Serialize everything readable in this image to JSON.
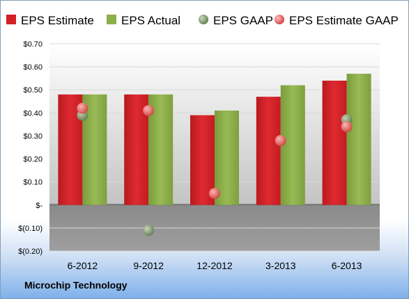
{
  "company": "Microchip Technology",
  "colors": {
    "estimate": "#d42027",
    "actual": "#8cb04a",
    "gaap": "#7e9c6a",
    "estimate_gaap": "#ee7070",
    "plot_bg_top": "#ffffff",
    "plot_bg_bottom": "#bdbdbd",
    "neg_bg": "#8c8c8c"
  },
  "chart_data": {
    "type": "bar",
    "categories": [
      "6-2012",
      "9-2012",
      "12-2012",
      "3-2013",
      "6-2013"
    ],
    "series": [
      {
        "name": "EPS Estimate",
        "kind": "bar",
        "values": [
          0.48,
          0.48,
          0.39,
          0.47,
          0.54
        ]
      },
      {
        "name": "EPS Actual",
        "kind": "bar",
        "values": [
          0.48,
          0.48,
          0.41,
          0.52,
          0.57
        ]
      },
      {
        "name": "EPS GAAP",
        "kind": "point",
        "values": [
          0.39,
          -0.11,
          null,
          null,
          0.37
        ]
      },
      {
        "name": "EPS Estimate GAAP",
        "kind": "point",
        "values": [
          0.42,
          0.41,
          0.05,
          0.28,
          0.34
        ]
      }
    ],
    "yticks": [
      0.7,
      0.6,
      0.5,
      0.4,
      0.3,
      0.2,
      0.1,
      0,
      -0.1,
      -0.2
    ],
    "ytick_labels": [
      "$0.70",
      "$0.60",
      "$0.50",
      "$0.40",
      "$0.30",
      "$0.20",
      "$0.10",
      "$-",
      "$(0.10)",
      "$(0.20)"
    ],
    "ylim": [
      -0.2,
      0.7
    ],
    "grid": true,
    "legend_position": "top"
  }
}
